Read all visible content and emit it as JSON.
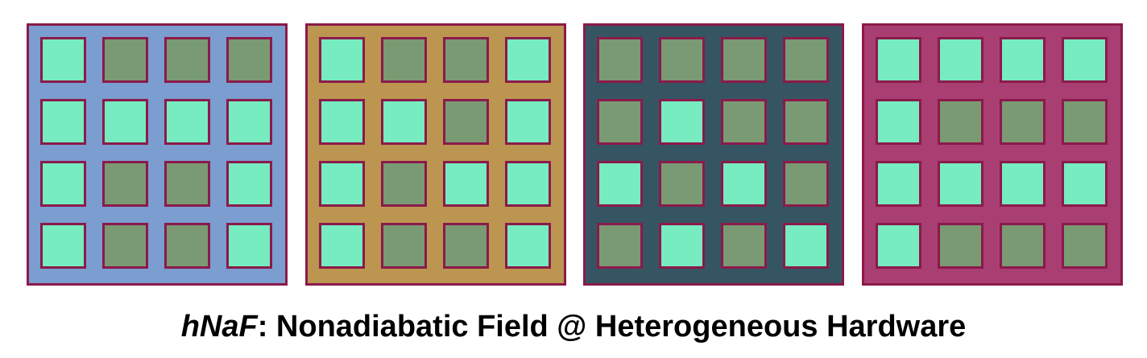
{
  "colors": {
    "border": "#8b1a4a",
    "cell_on": "#76ecc0",
    "cell_off": "#7a9a74"
  },
  "panels": [
    {
      "background": "#7b9dd0",
      "grid": [
        [
          1,
          0,
          0,
          0
        ],
        [
          1,
          1,
          1,
          1
        ],
        [
          1,
          0,
          0,
          1
        ],
        [
          1,
          0,
          0,
          1
        ]
      ]
    },
    {
      "background": "#bc9650",
      "grid": [
        [
          1,
          0,
          0,
          1
        ],
        [
          1,
          1,
          0,
          1
        ],
        [
          1,
          0,
          1,
          1
        ],
        [
          1,
          0,
          0,
          1
        ]
      ]
    },
    {
      "background": "#365563",
      "grid": [
        [
          0,
          0,
          0,
          0
        ],
        [
          0,
          1,
          0,
          0
        ],
        [
          1,
          0,
          1,
          0
        ],
        [
          0,
          1,
          0,
          1
        ]
      ]
    },
    {
      "background": "#a93e72",
      "grid": [
        [
          1,
          1,
          1,
          1
        ],
        [
          1,
          0,
          0,
          0
        ],
        [
          1,
          1,
          1,
          1
        ],
        [
          1,
          0,
          0,
          0
        ]
      ]
    }
  ],
  "caption": {
    "italic_part": "hNaF",
    "rest": ": Nonadiabatic Field @ Heterogeneous Hardware"
  }
}
